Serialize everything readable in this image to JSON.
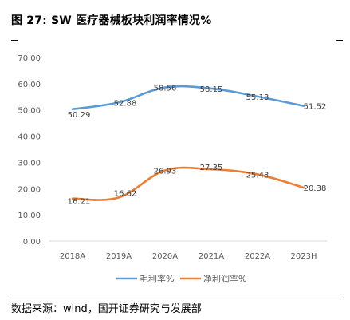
{
  "figure": {
    "title": "图 27: SW 医疗器械板块利润率情况%",
    "source": "数据来源：wind，国开证券研究与发展部"
  },
  "chart_data": {
    "type": "line",
    "categories": [
      "2018A",
      "2019A",
      "2020A",
      "2021A",
      "2022A",
      "2023H"
    ],
    "series": [
      {
        "name": "毛利率%",
        "color": "#5B9BD5",
        "values": [
          50.29,
          52.88,
          58.56,
          58.15,
          55.13,
          51.52
        ]
      },
      {
        "name": "净利润率%",
        "color": "#ED7D31",
        "values": [
          16.21,
          16.62,
          26.93,
          27.35,
          25.43,
          20.38
        ]
      }
    ],
    "yticks": [
      "0.00",
      "10.00",
      "20.00",
      "30.00",
      "40.00",
      "50.00",
      "60.00",
      "70.00"
    ],
    "ylim": [
      0,
      70
    ],
    "grid": false,
    "legend": "bottom"
  }
}
